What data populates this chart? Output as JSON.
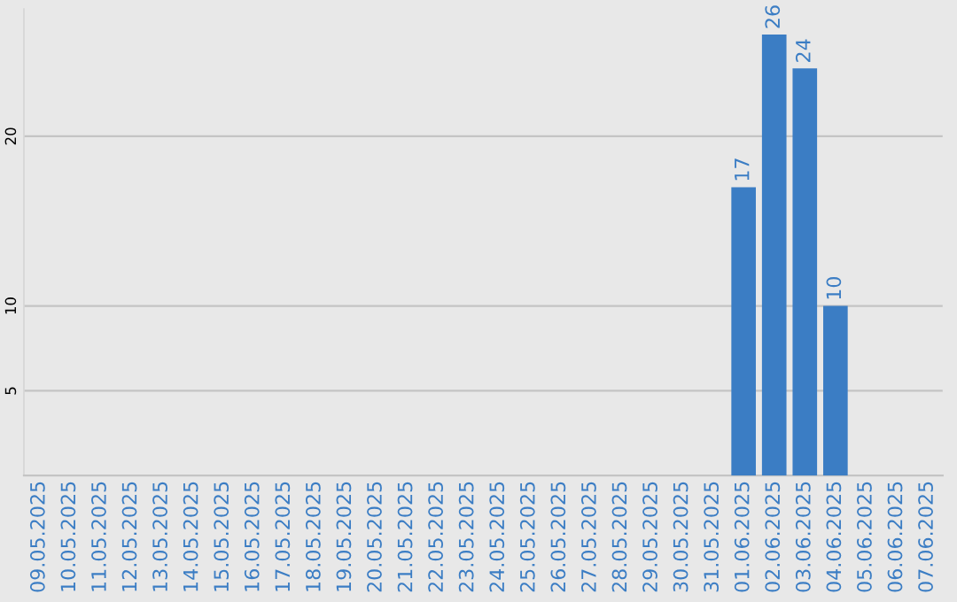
{
  "chart_data": {
    "type": "bar",
    "categories": [
      "09.05.2025",
      "10.05.2025",
      "11.05.2025",
      "12.05.2025",
      "13.05.2025",
      "14.05.2025",
      "15.05.2025",
      "16.05.2025",
      "17.05.2025",
      "18.05.2025",
      "19.05.2025",
      "20.05.2025",
      "21.05.2025",
      "22.05.2025",
      "23.05.2025",
      "24.05.2025",
      "25.05.2025",
      "26.05.2025",
      "27.05.2025",
      "28.05.2025",
      "29.05.2025",
      "30.05.2025",
      "31.05.2025",
      "01.06.2025",
      "02.06.2025",
      "03.06.2025",
      "04.06.2025",
      "05.06.2025",
      "06.06.2025",
      "07.06.2025"
    ],
    "values": [
      null,
      null,
      null,
      null,
      null,
      null,
      null,
      null,
      null,
      null,
      null,
      null,
      null,
      null,
      null,
      null,
      null,
      null,
      null,
      null,
      null,
      null,
      null,
      17,
      26,
      24,
      10,
      null,
      null,
      null
    ],
    "color": "#3b7dc4",
    "data_labels": true,
    "ylim": [
      0,
      27.5
    ],
    "yticks": [
      5,
      10,
      20
    ],
    "grid": "y"
  }
}
